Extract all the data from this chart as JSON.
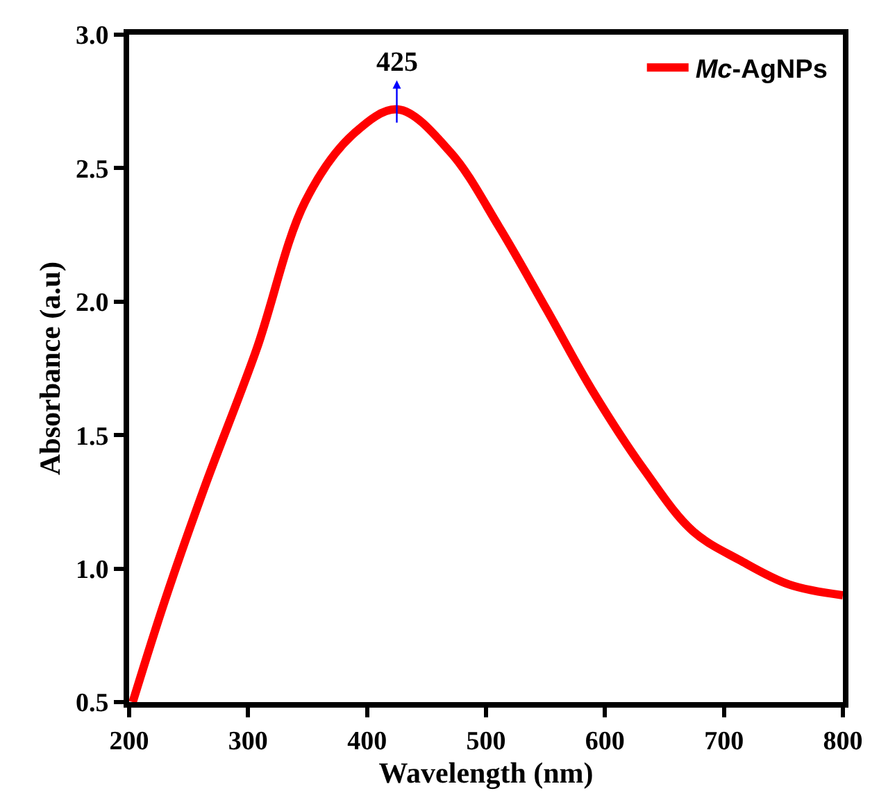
{
  "chart_data": {
    "type": "line",
    "xlabel": "Wavelength (nm)",
    "ylabel": "Absorbance (a.u)",
    "xlim": [
      200,
      800
    ],
    "xticks": [
      200,
      300,
      400,
      500,
      600,
      700,
      800
    ],
    "ylim": [
      0.5,
      3.0
    ],
    "yticks": [
      0.5,
      {
        "value": 1,
        "label": "1.0"
      },
      1.5,
      {
        "value": 2,
        "label": "2.0"
      },
      2.5,
      {
        "value": 3,
        "label": "3.0"
      }
    ],
    "legend": "top right",
    "marker": "none",
    "line_style": "solid",
    "series": [
      {
        "name": "Mc-AgNPs",
        "color": "#ff0000",
        "x": [
          203,
          230,
          263,
          307,
          348,
          389,
          426,
          470,
          511,
          551,
          589,
          633,
          674,
          714,
          755,
          800
        ],
        "values": [
          0.5,
          0.88,
          1.3,
          1.82,
          2.375,
          2.63,
          2.72,
          2.56,
          2.28,
          1.97,
          1.67,
          1.37,
          1.14,
          1.03,
          0.94,
          0.9
        ]
      }
    ],
    "annotations": [
      {
        "text": "425",
        "x": 425,
        "y": 2.72
      }
    ]
  }
}
